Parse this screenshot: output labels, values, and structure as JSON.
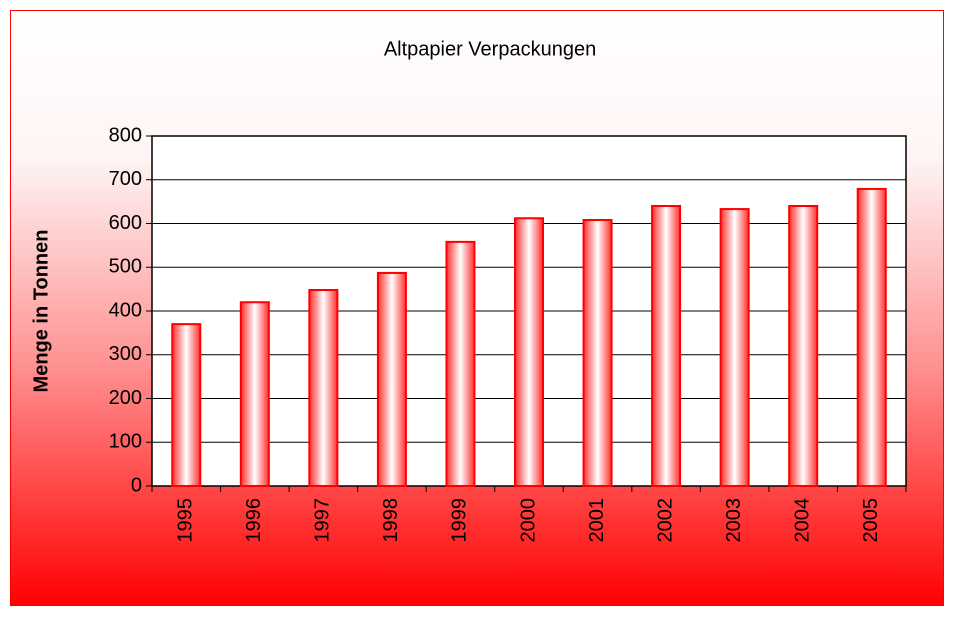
{
  "chart_data": {
    "type": "bar",
    "title": "Altpapier Verpackungen",
    "y_label": "Menge in Tonnen",
    "categories": [
      "1995",
      "1996",
      "1997",
      "1998",
      "1999",
      "2000",
      "2001",
      "2002",
      "2003",
      "2004",
      "2005"
    ],
    "values": [
      370,
      420,
      448,
      487,
      558,
      612,
      608,
      640,
      633,
      640,
      679
    ],
    "color": "#ff0000",
    "ylim": [
      0,
      800
    ],
    "yticks": [
      0,
      100,
      200,
      300,
      400,
      500,
      600,
      700,
      800
    ],
    "grid": true
  }
}
